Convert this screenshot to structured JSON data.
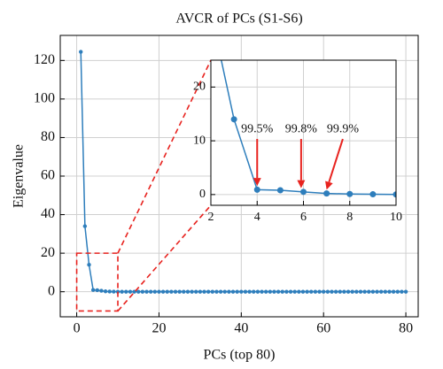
{
  "chart_data": {
    "type": "line",
    "title": "AVCR of PCs (S1-S6)",
    "x_label": "PCs (top 80)",
    "y_label": "Eigenvalue",
    "x": [
      1,
      2,
      3,
      4,
      5,
      6,
      7,
      8,
      9,
      10,
      11,
      12,
      13,
      14,
      15,
      16,
      17,
      18,
      19,
      20,
      21,
      22,
      23,
      24,
      25,
      26,
      27,
      28,
      29,
      30,
      31,
      32,
      33,
      34,
      35,
      36,
      37,
      38,
      39,
      40,
      41,
      42,
      43,
      44,
      45,
      46,
      47,
      48,
      49,
      50,
      51,
      52,
      53,
      54,
      55,
      56,
      57,
      58,
      59,
      60,
      61,
      62,
      63,
      64,
      65,
      66,
      67,
      68,
      69,
      70,
      71,
      72,
      73,
      74,
      75,
      76,
      77,
      78,
      79,
      80
    ],
    "series": [
      {
        "name": "Eigenvalue",
        "color": "#2e7ebc",
        "values": [
          124.5,
          34,
          14,
          0.9,
          0.8,
          0.5,
          0.2,
          0.1,
          0.05,
          0.02,
          0,
          0,
          0,
          0,
          0,
          0,
          0,
          0,
          0,
          0,
          0,
          0,
          0,
          0,
          0,
          0,
          0,
          0,
          0,
          0,
          0,
          0,
          0,
          0,
          0,
          0,
          0,
          0,
          0,
          0,
          0,
          0,
          0,
          0,
          0,
          0,
          0,
          0,
          0,
          0,
          0,
          0,
          0,
          0,
          0,
          0,
          0,
          0,
          0,
          0,
          0,
          0,
          0,
          0,
          0,
          0,
          0,
          0,
          0,
          0,
          0,
          0,
          0,
          0,
          0,
          0,
          0,
          0,
          0,
          0
        ]
      }
    ],
    "xlim": [
      -4,
      83
    ],
    "ylim": [
      -13,
      133
    ],
    "xticks": [
      0,
      20,
      40,
      60,
      80
    ],
    "yticks": [
      0,
      20,
      40,
      60,
      80,
      100,
      120
    ],
    "grid": true,
    "zoom_box": {
      "xlim": [
        0,
        10
      ],
      "ylim": [
        -10,
        20
      ],
      "color": "#e8231f"
    },
    "inset": {
      "xlim": [
        2,
        10
      ],
      "ylim": [
        -2,
        25
      ],
      "xticks": [
        2,
        4,
        6,
        8,
        10
      ],
      "yticks": [
        0,
        10,
        20
      ],
      "grid": true,
      "annotations": [
        {
          "text": "99.5%",
          "x": 4,
          "y": 1.6,
          "text_x": 4,
          "text_y": 11
        },
        {
          "text": "99.8%",
          "x": 5.9,
          "y": 1.2,
          "text_x": 5.9,
          "text_y": 11
        },
        {
          "text": "99.9%",
          "x": 7.0,
          "y": 0.9,
          "text_x": 7.7,
          "text_y": 11
        }
      ],
      "arrow_color": "#e8231f"
    }
  }
}
